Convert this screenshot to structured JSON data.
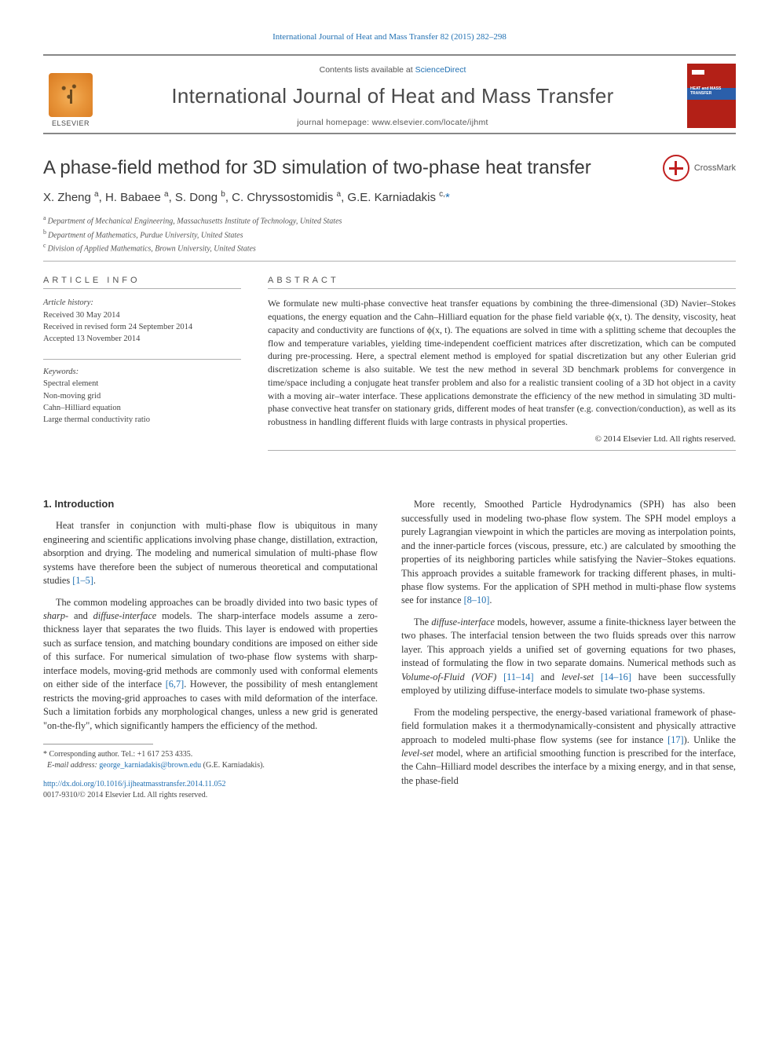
{
  "citation": {
    "journal_abbrev": "International Journal of Heat and Mass Transfer",
    "vol_issue_pages": "82 (2015) 282–298"
  },
  "header": {
    "contents_prefix": "Contents lists available at ",
    "contents_link": "ScienceDirect",
    "journal_name": "International Journal of Heat and Mass Transfer",
    "homepage_prefix": "journal homepage: ",
    "homepage_url": "www.elsevier.com/locate/ijhmt",
    "publisher_word": "ELSEVIER"
  },
  "title": "A phase-field method for 3D simulation of two-phase heat transfer",
  "crossmark_label": "CrossMark",
  "authors_html": "X. Zheng <sup>a</sup>, H. Babaee <sup>a</sup>, S. Dong <sup>b</sup>, C. Chryssostomidis <sup>a</sup>, G.E. Karniadakis <sup>c,</sup>",
  "corr_marker": "*",
  "affiliations": [
    {
      "key": "a",
      "text": "Department of Mechanical Engineering, Massachusetts Institute of Technology, United States"
    },
    {
      "key": "b",
      "text": "Department of Mathematics, Purdue University, United States"
    },
    {
      "key": "c",
      "text": "Division of Applied Mathematics, Brown University, United States"
    }
  ],
  "article_info": {
    "heading": "ARTICLE INFO",
    "history_label": "Article history:",
    "history": [
      "Received 30 May 2014",
      "Received in revised form 24 September 2014",
      "Accepted 13 November 2014"
    ],
    "keywords_label": "Keywords:",
    "keywords": [
      "Spectral element",
      "Non-moving grid",
      "Cahn–Hilliard equation",
      "Large thermal conductivity ratio"
    ]
  },
  "abstract": {
    "heading": "ABSTRACT",
    "text": "We formulate new multi-phase convective heat transfer equations by combining the three-dimensional (3D) Navier–Stokes equations, the energy equation and the Cahn–Hilliard equation for the phase field variable ϕ(x, t). The density, viscosity, heat capacity and conductivity are functions of ϕ(x, t). The equations are solved in time with a splitting scheme that decouples the flow and temperature variables, yielding time-independent coefficient matrices after discretization, which can be computed during pre-processing. Here, a spectral element method is employed for spatial discretization but any other Eulerian grid discretization scheme is also suitable. We test the new method in several 3D benchmark problems for convergence in time/space including a conjugate heat transfer problem and also for a realistic transient cooling of a 3D hot object in a cavity with a moving air–water interface. These applications demonstrate the efficiency of the new method in simulating 3D multi-phase convective heat transfer on stationary grids, different modes of heat transfer (e.g. convection/conduction), as well as its robustness in handling different fluids with large contrasts in physical properties.",
    "copyright": "© 2014 Elsevier Ltd. All rights reserved."
  },
  "body": {
    "section_heading": "1. Introduction",
    "paragraphs": [
      "Heat transfer in conjunction with multi-phase flow is ubiquitous in many engineering and scientific applications involving phase change, distillation, extraction, absorption and drying. The modeling and numerical simulation of multi-phase flow systems have therefore been the subject of numerous theoretical and computational studies [1–5].",
      "The common modeling approaches can be broadly divided into two basic types of sharp- and diffuse-interface models. The sharp-interface models assume a zero-thickness layer that separates the two fluids. This layer is endowed with properties such as surface tension, and matching boundary conditions are imposed on either side of this surface. For numerical simulation of two-phase flow systems with sharp-interface models, moving-grid methods are commonly used with conformal elements on either side of the interface [6,7]. However, the possibility of mesh entanglement restricts the moving-grid approaches to cases with mild deformation of the interface. Such a limitation forbids any morphological changes, unless a new grid is generated \"on-the-fly\", which significantly hampers the efficiency of the method.",
      "More recently, Smoothed Particle Hydrodynamics (SPH) has also been successfully used in modeling two-phase flow system. The SPH model employs a purely Lagrangian viewpoint in which the particles are moving as interpolation points, and the inner-particle forces (viscous, pressure, etc.) are calculated by smoothing the properties of its neighboring particles while satisfying the Navier–Stokes equations. This approach provides a suitable framework for tracking different phases, in multi-phase flow systems. For the application of SPH method in multi-phase flow systems see for instance [8–10].",
      "The diffuse-interface models, however, assume a finite-thickness layer between the two phases. The interfacial tension between the two fluids spreads over this narrow layer. This approach yields a unified set of governing equations for two phases, instead of formulating the flow in two separate domains. Numerical methods such as Volume-of-Fluid (VOF) [11–14] and level-set [14–16] have been successfully employed by utilizing diffuse-interface models to simulate two-phase systems.",
      "From the modeling perspective, the energy-based variational framework of phase-field formulation makes it a thermodynamically-consistent and physically attractive approach to modeled multi-phase flow systems (see for instance [17]). Unlike the level-set model, where an artificial smoothing function is prescribed for the interface, the Cahn–Hilliard model describes the interface by a mixing energy, and in that sense, the phase-field"
    ],
    "refs": {
      "r1_5": "[1–5]",
      "r6_7": "[6,7]",
      "r8_10": "[8–10]",
      "r11_14": "[11–14]",
      "r14_16": "[14–16]",
      "r17": "[17]"
    }
  },
  "footnote": {
    "corr_label": "Corresponding author. Tel.: +1 617 253 4335.",
    "email_label": "E-mail address:",
    "email": "george_karniadakis@brown.edu",
    "email_who": "(G.E. Karniadakis)."
  },
  "footer": {
    "doi_url": "http://dx.doi.org/10.1016/j.ijheatmasstransfer.2014.11.052",
    "issn_line": "0017-9310/© 2014 Elsevier Ltd. All rights reserved."
  },
  "colors": {
    "link": "#1f6fb2",
    "rule_thick": "#878787",
    "rule_thin": "#b0b0b0",
    "cover_red": "#b32017",
    "cover_blue": "#2b5faa",
    "crossmark_red": "#c02020"
  }
}
